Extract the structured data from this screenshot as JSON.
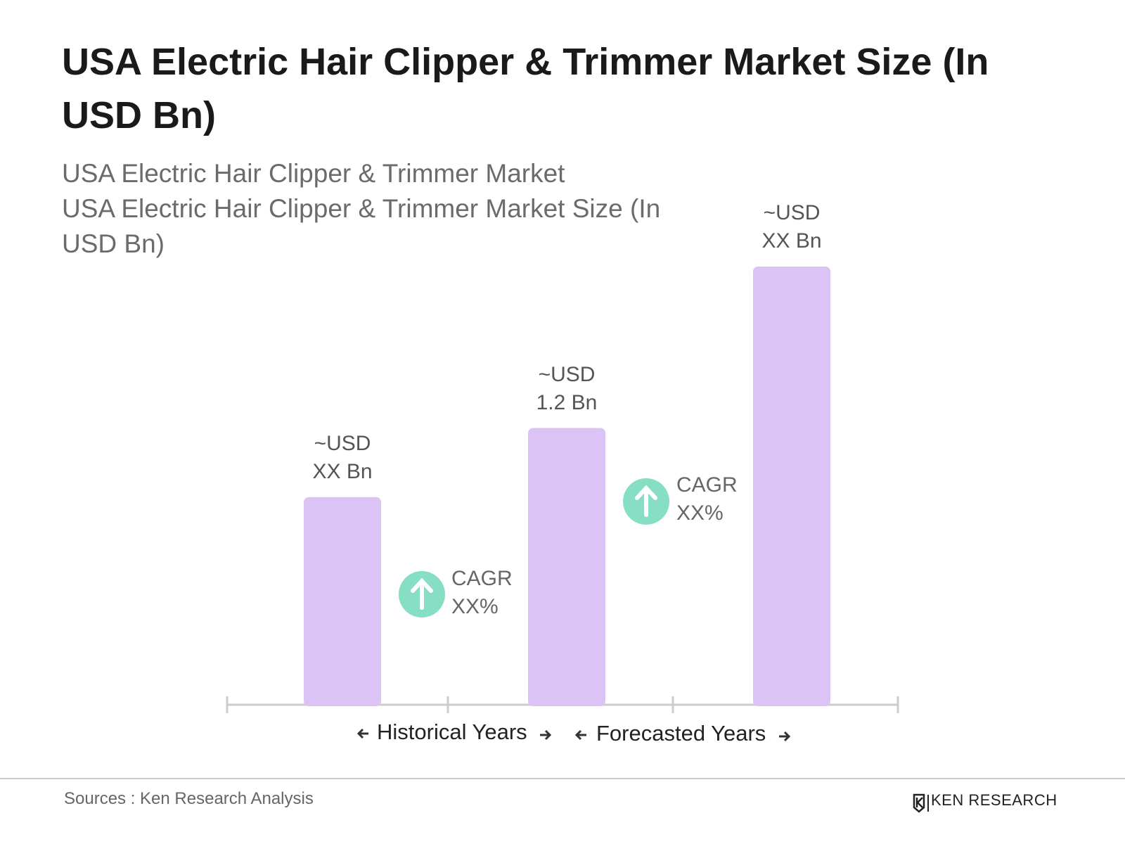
{
  "chart_data": {
    "type": "bar",
    "title": "USA Electric Hair Clipper & Trimmer Market Size (In USD Bn)",
    "subtitle": [
      "USA Electric Hair Clipper & Trimmer Market",
      "USA Electric Hair Clipper & Trimmer Market Size (In USD Bn)"
    ],
    "categories": [
      null,
      null,
      null
    ],
    "values": [
      0.9,
      1.2,
      1.9
    ],
    "value_labels": [
      "~USD XX Bn",
      "~USD 1.2 Bn",
      "~USD XX Bn"
    ],
    "color": "#dcc3f5",
    "annotations": [
      "CAGR XX%",
      "CAGR XX%"
    ],
    "period_labels": [
      "Historical Years",
      "Forecasted Years"
    ]
  },
  "footer": {
    "source": "Sources : Ken Research Analysis",
    "logo": "KEN RESEARCH"
  }
}
